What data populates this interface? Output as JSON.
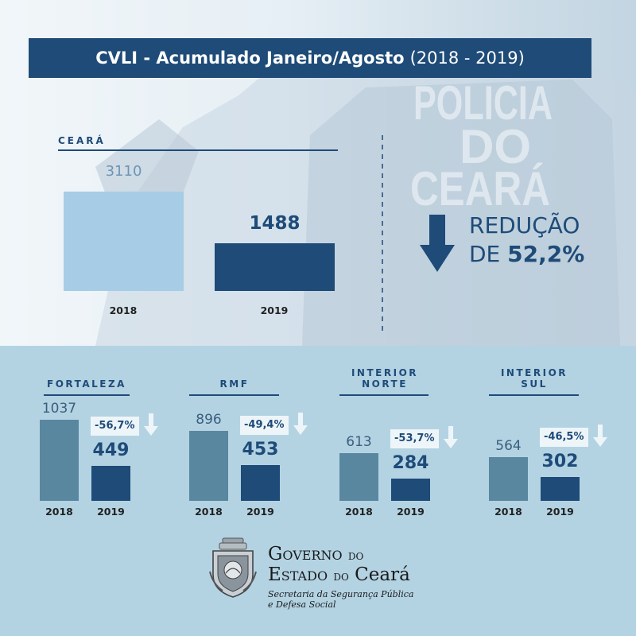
{
  "title": {
    "bold": "CVLI - Acumulado Janeiro/Agosto",
    "light": "(2018 - 2019)"
  },
  "watermark": {
    "line1": "POLICIA",
    "line2": "DO",
    "line3": "CEARÁ"
  },
  "colors": {
    "navy": "#1e4b78",
    "light_bar": "#a7cde6",
    "bar_2018_region": "#5a87a0",
    "bottom_bg": "#b3d3e3"
  },
  "reduction": {
    "line1": "REDUÇÃO",
    "prefix": "DE",
    "value": "52,2%",
    "icon": "arrow-down-icon"
  },
  "chart_data": [
    {
      "type": "bar",
      "title": "CEARÁ",
      "categories": [
        "2018",
        "2019"
      ],
      "values": [
        3110,
        1488
      ],
      "value_labels": [
        "3110",
        "1488"
      ]
    },
    {
      "type": "bar",
      "title": "FORTALEZA",
      "categories": [
        "2018",
        "2019"
      ],
      "values": [
        1037,
        449
      ],
      "value_labels": [
        "1037",
        "449"
      ],
      "change": "-56,7%"
    },
    {
      "type": "bar",
      "title": "RMF",
      "categories": [
        "2018",
        "2019"
      ],
      "values": [
        896,
        453
      ],
      "value_labels": [
        "896",
        "453"
      ],
      "change": "-49,4%"
    },
    {
      "type": "bar",
      "title": "INTERIOR NORTE",
      "title_lines": [
        "INTERIOR",
        "NORTE"
      ],
      "categories": [
        "2018",
        "2019"
      ],
      "values": [
        613,
        284
      ],
      "value_labels": [
        "613",
        "284"
      ],
      "change": "-53,7%"
    },
    {
      "type": "bar",
      "title": "INTERIOR SUL",
      "title_lines": [
        "INTERIOR",
        "SUL"
      ],
      "categories": [
        "2018",
        "2019"
      ],
      "values": [
        564,
        302
      ],
      "value_labels": [
        "564",
        "302"
      ],
      "change": "-46,5%"
    }
  ],
  "footer": {
    "line1_cap": "G",
    "line1_rest": "overno ",
    "line1_small": "do",
    "line2_cap": "E",
    "line2_rest": "stado ",
    "line2_small": "do",
    "line2_end": " Ceará",
    "subtitle_line1": "Secretaria da Segurança Pública",
    "subtitle_line2": "e Defesa Social",
    "logo_icon": "state-coat-of-arms-icon"
  }
}
